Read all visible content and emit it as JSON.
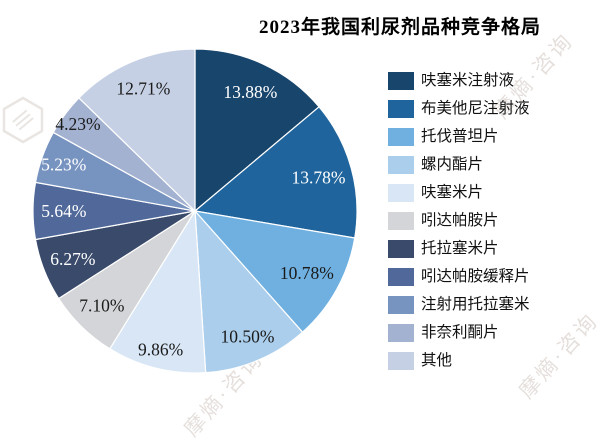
{
  "title": "2023年我国利尿剂品种竞争格局",
  "watermark": {
    "text": "摩熵·咨询"
  },
  "chart_data": {
    "type": "pie",
    "title": "2023年我国利尿剂品种竞争格局",
    "start_angle_deg": 0,
    "direction": "clockwise",
    "legend_position": "right",
    "total_percent": 100,
    "slices": [
      {
        "label": "呋塞米注射液",
        "value": 13.88,
        "display": "13.88%",
        "color": "#17456b",
        "label_color": "#ffffff"
      },
      {
        "label": "布美他尼注射液",
        "value": 13.78,
        "display": "13.78%",
        "color": "#1f649c",
        "label_color": "#ffffff"
      },
      {
        "label": "托伐普坦片",
        "value": 10.78,
        "display": "10.78%",
        "color": "#6fb0e0",
        "label_color": "#1a1a1a"
      },
      {
        "label": "螺内酯片",
        "value": 10.5,
        "display": "10.50%",
        "color": "#abceec",
        "label_color": "#1a1a1a"
      },
      {
        "label": "呋塞米片",
        "value": 9.86,
        "display": "9.86%",
        "color": "#d8e6f5",
        "label_color": "#1a1a1a"
      },
      {
        "label": "吲达帕胺片",
        "value": 7.1,
        "display": "7.10%",
        "color": "#d4d5d8",
        "label_color": "#1a1a1a"
      },
      {
        "label": "托拉塞米片",
        "value": 6.27,
        "display": "6.27%",
        "color": "#3a4a6b",
        "label_color": "#ffffff"
      },
      {
        "label": "吲达帕胺缓释片",
        "value": 5.64,
        "display": "5.64%",
        "color": "#50699a",
        "label_color": "#ffffff"
      },
      {
        "label": "注射用托拉塞米",
        "value": 5.23,
        "display": "5.23%",
        "color": "#7793c0",
        "label_color": "#ffffff"
      },
      {
        "label": "非奈利酮片",
        "value": 4.23,
        "display": "4.23%",
        "color": "#a4b2d1",
        "label_color": "#1a1a1a"
      },
      {
        "label": "其他",
        "value": 12.71,
        "display": "12.71%",
        "color": "#c6d0e4",
        "label_color": "#1a1a1a"
      }
    ]
  }
}
